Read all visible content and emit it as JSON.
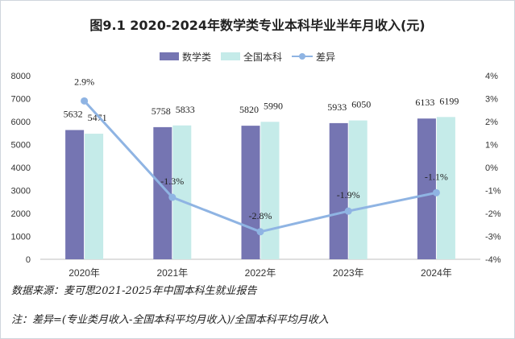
{
  "chart_data": {
    "type": "bar",
    "title": "图9.1  2020-2024年数学类专业本科毕业半年月收入(元)",
    "categories": [
      "2020年",
      "2021年",
      "2022年",
      "2023年",
      "2024年"
    ],
    "series": [
      {
        "name": "数学类",
        "kind": "bar",
        "axis": "left",
        "values": [
          5632,
          5758,
          5820,
          5933,
          6133
        ]
      },
      {
        "name": "全国本科",
        "kind": "bar",
        "axis": "left",
        "values": [
          5471,
          5833,
          5990,
          6050,
          6199
        ]
      },
      {
        "name": "差异",
        "kind": "line",
        "axis": "right",
        "values": [
          2.9,
          -1.3,
          -2.8,
          -1.9,
          -1.1
        ],
        "labels": [
          "2.9%",
          "-1.3%",
          "-2.8%",
          "-1.9%",
          "-1.1%"
        ]
      }
    ],
    "ylim": [
      0,
      8000
    ],
    "yticks": [
      "0",
      "1000",
      "2000",
      "3000",
      "4000",
      "5000",
      "6000",
      "7000",
      "8000"
    ],
    "y2lim": [
      -4,
      4
    ],
    "y2ticks": [
      "-4%",
      "-3%",
      "-2%",
      "-1%",
      "0%",
      "1%",
      "2%",
      "3%",
      "4%"
    ],
    "legend_position": "top-center",
    "colors": {
      "bar1": "#7575b2",
      "bar2": "#c5ebe9",
      "line": "#8fb4e3"
    }
  },
  "source_note": "数据来源：麦可思2021-2025年中国本科生就业报告",
  "formula_note": "注：差异=(专业类月收入-全国本科平均月收入)/全国本科平均月收入"
}
